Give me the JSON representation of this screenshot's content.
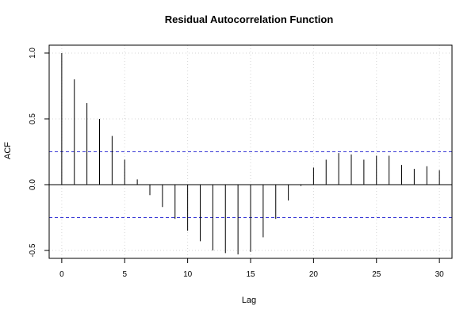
{
  "chart_data": {
    "type": "bar",
    "title": "Residual Autocorrelation Function",
    "xlabel": "Lag",
    "ylabel": "ACF",
    "xlim": [
      -1,
      31
    ],
    "ylim": [
      -0.55,
      1.0
    ],
    "x_ticks": [
      0,
      5,
      10,
      15,
      20,
      25,
      30
    ],
    "y_ticks": [
      -0.5,
      0.0,
      0.5,
      1.0
    ],
    "x_tick_labels": [
      "0",
      "5",
      "10",
      "15",
      "20",
      "25",
      "30"
    ],
    "y_tick_labels": [
      "-0.5",
      "0.0",
      "0.5",
      "1.0"
    ],
    "lags": [
      0,
      1,
      2,
      3,
      4,
      5,
      6,
      7,
      8,
      9,
      10,
      11,
      12,
      13,
      14,
      15,
      16,
      17,
      18,
      19,
      20,
      21,
      22,
      23,
      24,
      25,
      26,
      27,
      28,
      29,
      30
    ],
    "values": [
      1.0,
      0.8,
      0.62,
      0.5,
      0.37,
      0.19,
      0.04,
      -0.08,
      -0.17,
      -0.26,
      -0.35,
      -0.43,
      -0.5,
      -0.52,
      -0.53,
      -0.51,
      -0.4,
      -0.26,
      -0.12,
      -0.01,
      0.13,
      0.19,
      0.24,
      0.23,
      0.19,
      0.22,
      0.22,
      0.15,
      0.12,
      0.14,
      0.11
    ],
    "confidence_bounds": [
      0.25,
      -0.25
    ],
    "confidence_line_color": "#3b3bd6",
    "grid": true
  }
}
